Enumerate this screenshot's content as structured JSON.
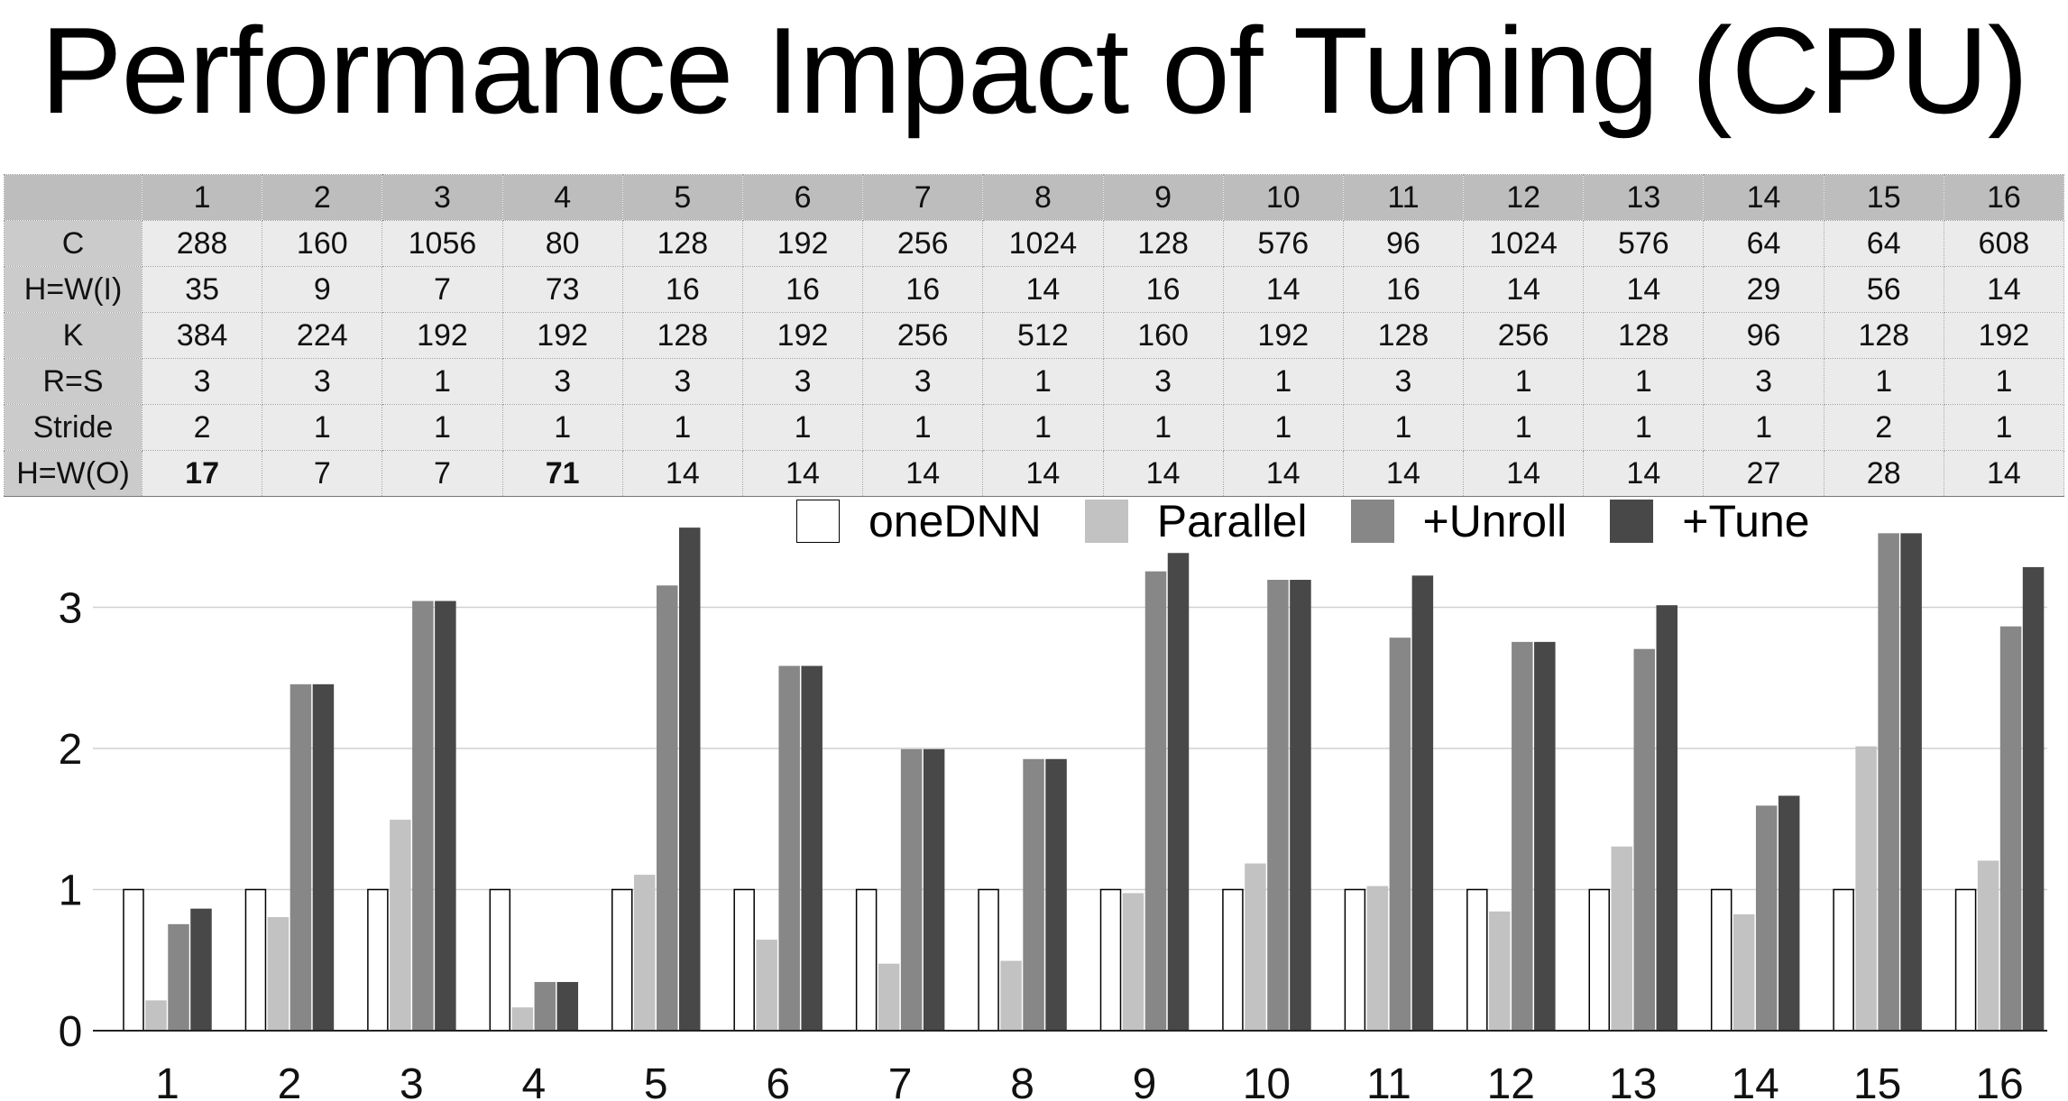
{
  "title": "Performance Impact of Tuning (CPU)",
  "table": {
    "columns": [
      "1",
      "2",
      "3",
      "4",
      "5",
      "6",
      "7",
      "8",
      "9",
      "10",
      "11",
      "12",
      "13",
      "14",
      "15",
      "16"
    ],
    "rows": [
      {
        "label": "C",
        "values": [
          "288",
          "160",
          "1056",
          "80",
          "128",
          "192",
          "256",
          "1024",
          "128",
          "576",
          "96",
          "1024",
          "576",
          "64",
          "64",
          "608"
        ],
        "bold": []
      },
      {
        "label": "H=W(I)",
        "values": [
          "35",
          "9",
          "7",
          "73",
          "16",
          "16",
          "16",
          "14",
          "16",
          "14",
          "16",
          "14",
          "14",
          "29",
          "56",
          "14"
        ],
        "bold": []
      },
      {
        "label": "K",
        "values": [
          "384",
          "224",
          "192",
          "192",
          "128",
          "192",
          "256",
          "512",
          "160",
          "192",
          "128",
          "256",
          "128",
          "96",
          "128",
          "192"
        ],
        "bold": []
      },
      {
        "label": "R=S",
        "values": [
          "3",
          "3",
          "1",
          "3",
          "3",
          "3",
          "3",
          "1",
          "3",
          "1",
          "3",
          "1",
          "1",
          "3",
          "1",
          "1"
        ],
        "bold": []
      },
      {
        "label": "Stride",
        "values": [
          "2",
          "1",
          "1",
          "1",
          "1",
          "1",
          "1",
          "1",
          "1",
          "1",
          "1",
          "1",
          "1",
          "1",
          "2",
          "1"
        ],
        "bold": []
      },
      {
        "label": "H=W(O)",
        "values": [
          "17",
          "7",
          "7",
          "71",
          "14",
          "14",
          "14",
          "14",
          "14",
          "14",
          "14",
          "14",
          "14",
          "27",
          "28",
          "14"
        ],
        "bold": [
          0,
          3
        ]
      }
    ]
  },
  "chart_data": {
    "type": "bar",
    "title": "",
    "xlabel": "",
    "ylabel": "",
    "ylim": [
      0,
      3.6
    ],
    "yticks": [
      "0",
      "1",
      "2",
      "3"
    ],
    "grid": true,
    "legend_position": "top-right",
    "categories": [
      "1",
      "2",
      "3",
      "4",
      "5",
      "6",
      "7",
      "8",
      "9",
      "10",
      "11",
      "12",
      "13",
      "14",
      "15",
      "16"
    ],
    "series": [
      {
        "name": "oneDNN",
        "color": "#ffffff",
        "stroke": "#000000",
        "values": [
          1,
          1,
          1,
          1,
          1,
          1,
          1,
          1,
          1,
          1,
          1,
          1,
          1,
          1,
          1,
          1
        ]
      },
      {
        "name": "Parallel",
        "color": "#c2c2c2",
        "stroke": "#c2c2c2",
        "values": [
          0.21,
          0.8,
          1.49,
          0.16,
          1.1,
          0.64,
          0.47,
          0.49,
          0.97,
          1.18,
          1.02,
          0.84,
          1.3,
          0.82,
          2.01,
          1.2
        ]
      },
      {
        "name": "+Unroll",
        "color": "#878787",
        "stroke": "#878787",
        "values": [
          0.75,
          2.45,
          3.04,
          0.34,
          3.15,
          2.58,
          1.99,
          1.92,
          3.25,
          3.19,
          2.78,
          2.75,
          2.7,
          1.59,
          3.52,
          2.86
        ]
      },
      {
        "name": "+Tune",
        "color": "#484848",
        "stroke": "#484848",
        "values": [
          0.86,
          2.45,
          3.04,
          0.34,
          3.56,
          2.58,
          1.99,
          1.92,
          3.38,
          3.19,
          3.22,
          2.75,
          3.01,
          1.66,
          3.52,
          3.28
        ]
      }
    ]
  }
}
